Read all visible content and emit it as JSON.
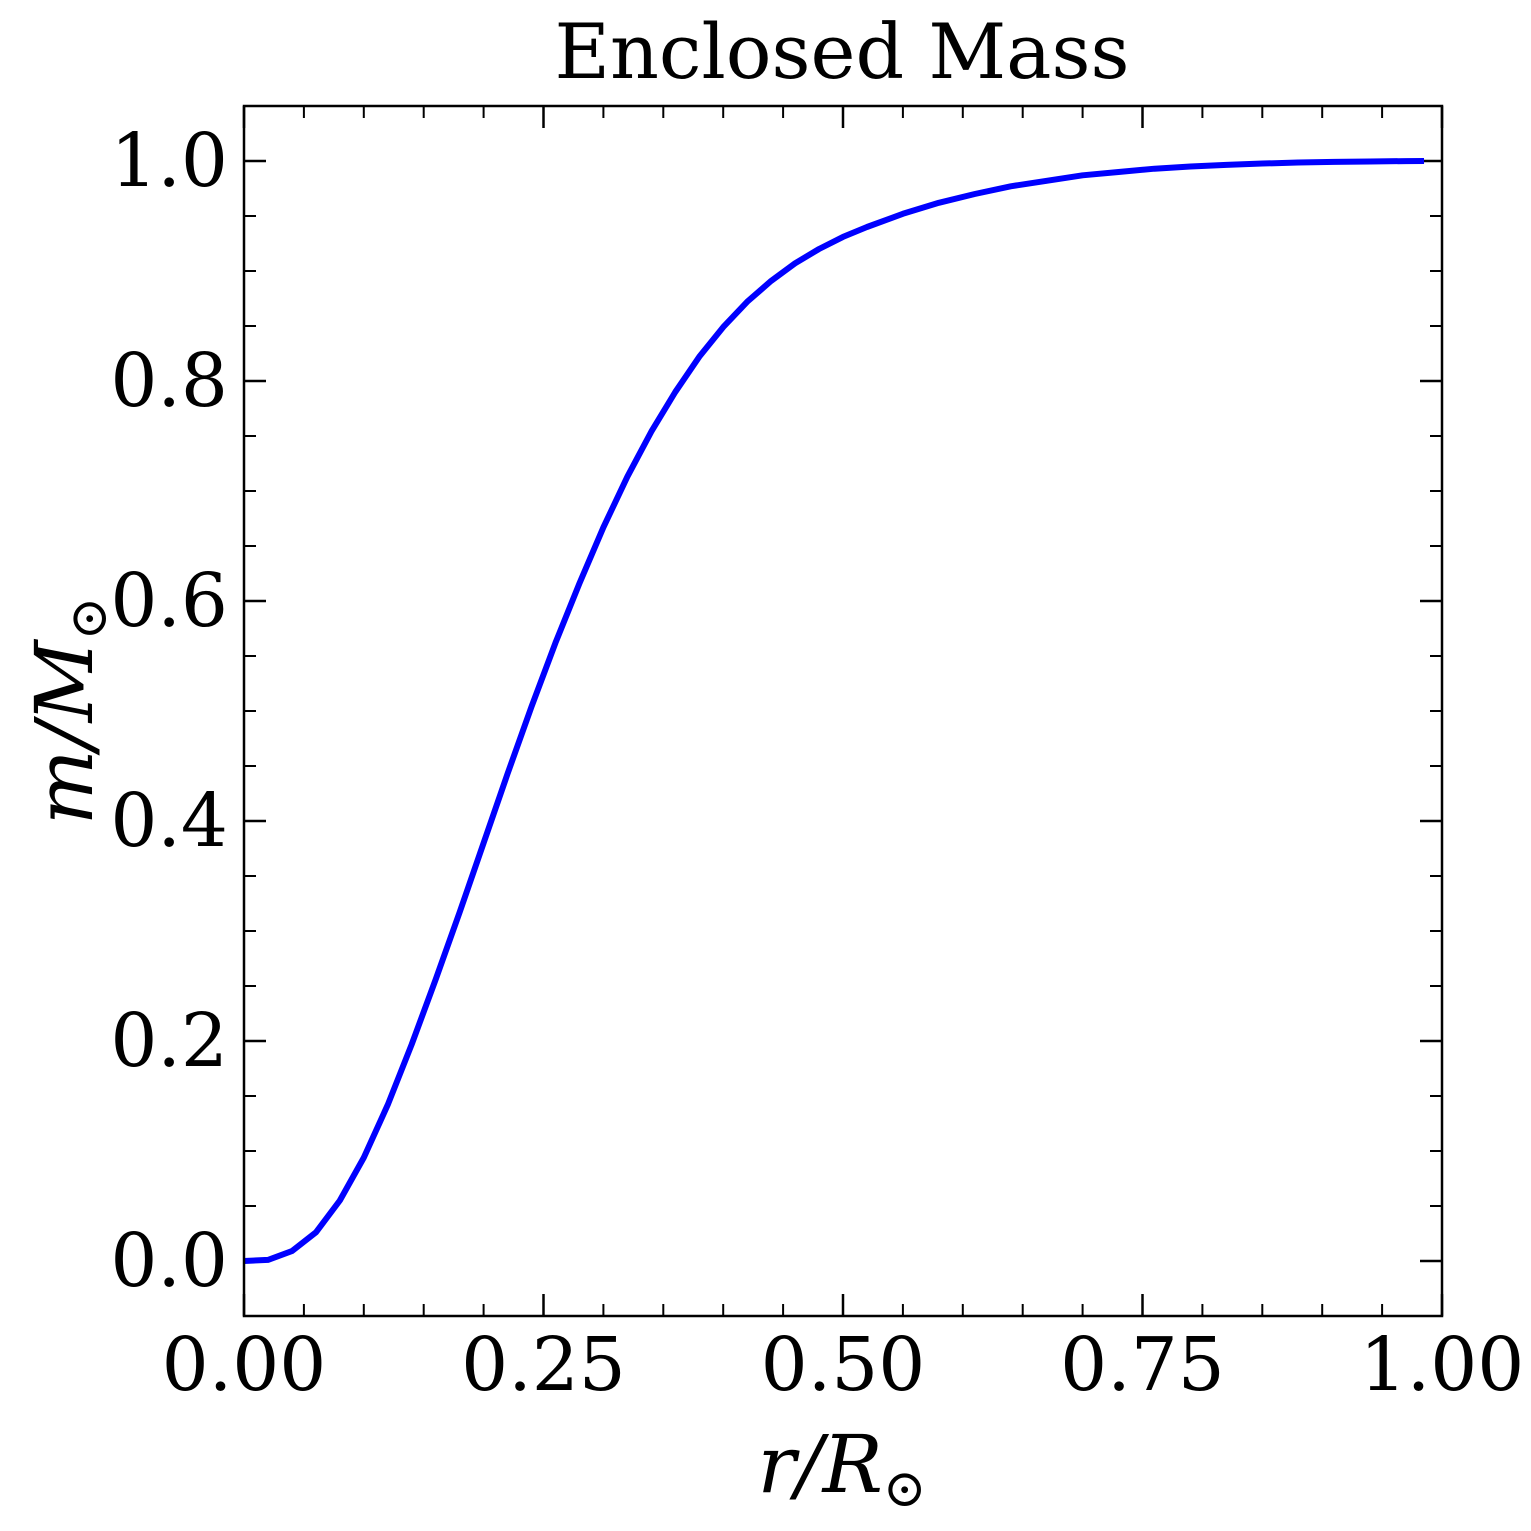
{
  "chart_data": {
    "type": "line",
    "title": "Enclosed Mass",
    "xlabel": {
      "main": "r/R",
      "sub": "⊙"
    },
    "ylabel": {
      "main": "m/M",
      "sub": "⊙"
    },
    "xlim": [
      0.0,
      1.0
    ],
    "ylim": [
      -0.05,
      1.05
    ],
    "x_ticks": [
      0.0,
      0.25,
      0.5,
      0.75,
      1.0
    ],
    "x_tick_labels": [
      "0.00",
      "0.25",
      "0.50",
      "0.75",
      "1.00"
    ],
    "y_ticks": [
      0.0,
      0.2,
      0.4,
      0.6,
      0.8,
      1.0
    ],
    "y_tick_labels": [
      "0.0",
      "0.2",
      "0.4",
      "0.6",
      "0.8",
      "1.0"
    ],
    "x_minor_step": 0.05,
    "y_minor_step": 0.05,
    "grid": false,
    "series": [
      {
        "color": "#0000ff",
        "x": [
          0.0,
          0.02,
          0.04,
          0.06,
          0.08,
          0.1,
          0.12,
          0.14,
          0.16,
          0.18,
          0.2,
          0.22,
          0.24,
          0.26,
          0.28,
          0.3,
          0.32,
          0.34,
          0.36,
          0.38,
          0.4,
          0.42,
          0.44,
          0.46,
          0.48,
          0.5,
          0.52,
          0.55,
          0.58,
          0.61,
          0.64,
          0.67,
          0.7,
          0.73,
          0.76,
          0.79,
          0.82,
          0.85,
          0.88,
          0.91,
          0.94,
          0.97,
          0.985
        ],
        "y": [
          0.0,
          0.001,
          0.009,
          0.026,
          0.055,
          0.094,
          0.142,
          0.197,
          0.256,
          0.317,
          0.38,
          0.443,
          0.504,
          0.562,
          0.616,
          0.667,
          0.713,
          0.754,
          0.79,
          0.822,
          0.849,
          0.872,
          0.891,
          0.907,
          0.92,
          0.931,
          0.94,
          0.952,
          0.962,
          0.97,
          0.977,
          0.982,
          0.987,
          0.99,
          0.993,
          0.995,
          0.9965,
          0.9977,
          0.9986,
          0.9992,
          0.9996,
          0.9999,
          1.0
        ]
      }
    ]
  }
}
